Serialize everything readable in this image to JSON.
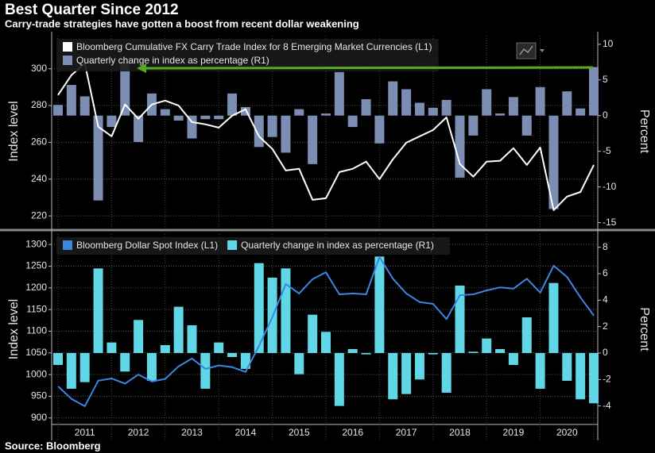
{
  "title": "Best Quarter Since 2012",
  "subtitle": "Carry-trade strategies have gotten a boost from recent dollar weakening",
  "source": "Source: Bloomberg",
  "chart_data": [
    {
      "type": "combo",
      "ylabel": "Index level",
      "y2label": "Percent",
      "categories": [
        null,
        null,
        null,
        null,
        null,
        null,
        null,
        null,
        null,
        null,
        null,
        null,
        null,
        null,
        null,
        null,
        null,
        null,
        null,
        null,
        null,
        null,
        null,
        null,
        null,
        null,
        null,
        null,
        null,
        null,
        null,
        null,
        null,
        null,
        null,
        null,
        null,
        null,
        null,
        null,
        null
      ],
      "ylim": [
        214,
        318
      ],
      "yticks": [
        220,
        240,
        260,
        280,
        300
      ],
      "y2lim": [
        -15.6,
        11.2
      ],
      "y2ticks": [
        -15,
        -10,
        -5,
        0,
        5,
        10
      ],
      "grid": true,
      "legend": "top-left",
      "series": [
        {
          "name": "Bloomberg Cumulative FX Carry Trade Index for 8 Emerging Market Currencies  (L1)",
          "type": "line",
          "color": "#ffffff",
          "values": [
            285.7,
            296.5,
            303,
            268.5,
            263.3,
            280.6,
            272.8,
            280.6,
            282.7,
            280,
            271,
            269.8,
            268,
            274.5,
            278,
            263.3,
            256.4,
            244.7,
            245.6,
            228.7,
            229.6,
            243.8,
            245.6,
            249.5,
            240,
            250.8,
            259.8,
            263.3,
            266.7,
            273.6,
            248.2,
            241.3,
            249.5,
            250,
            256.8,
            247.7,
            257.2,
            223.1,
            230.5,
            233,
            247.7
          ]
        },
        {
          "name": "Quarterly change in index as percentage (R1)",
          "type": "bar",
          "axis": "y2",
          "color": "#7b8db2",
          "values": [
            1.5,
            4.3,
            2.7,
            -11.9,
            -1.6,
            7.5,
            -3.7,
            3.1,
            0.9,
            -0.7,
            -3.2,
            -0.5,
            -0.5,
            3.1,
            1.2,
            -4.4,
            -3.0,
            -5.2,
            0.9,
            -6.8,
            0.3,
            6.1,
            -1.6,
            2.3,
            -3.9,
            4.8,
            3.7,
            1.8,
            1.1,
            2.2,
            -8.7,
            -2.8,
            3.7,
            0.3,
            2.6,
            -2.8,
            4.0,
            -13.1,
            3.4,
            1.0,
            6.8
          ]
        }
      ]
    },
    {
      "type": "combo",
      "ylabel": "Index level",
      "y2label": "Percent",
      "categories": [
        null,
        null,
        null,
        null,
        null,
        null,
        null,
        null,
        null,
        null,
        null,
        null,
        null,
        null,
        null,
        null,
        null,
        null,
        null,
        null,
        null,
        null,
        null,
        null,
        null,
        null,
        null,
        null,
        null,
        null,
        null,
        null,
        null,
        null,
        null,
        null,
        null,
        null,
        null,
        null,
        null
      ],
      "year_labels": [
        "2011",
        "2012",
        "2013",
        "2014",
        "2015",
        "2016",
        "2017",
        "2018",
        "2019",
        "2020"
      ],
      "ylim": [
        885,
        1324
      ],
      "yticks": [
        900,
        950,
        1000,
        1050,
        1100,
        1150,
        1200,
        1250,
        1300
      ],
      "y2lim": [
        -5.4,
        9
      ],
      "y2ticks": [
        -4,
        -2,
        0,
        2,
        4,
        6,
        8
      ],
      "grid": true,
      "legend": "top-left",
      "series": [
        {
          "name": "Bloomberg Dollar Spot Index (L1)",
          "type": "line",
          "color": "#3a86e0",
          "values": [
            973,
            944,
            927,
            986,
            991,
            979,
            1000,
            984,
            990,
            1019,
            1037,
            1013,
            1021,
            1017,
            1006,
            1066,
            1132,
            1209,
            1187,
            1220,
            1236,
            1185,
            1187,
            1185,
            1271,
            1221,
            1187,
            1167,
            1163,
            1128,
            1183,
            1185,
            1194,
            1201,
            1198,
            1221,
            1189,
            1251,
            1225,
            1178,
            1136
          ]
        },
        {
          "name": "Quarterly change in index as percentage (R1)",
          "type": "bar",
          "axis": "y2",
          "color": "#5fd7e6",
          "values": [
            -0.9,
            -2.7,
            -2.2,
            6.4,
            0.8,
            -1.4,
            2.5,
            -2.1,
            0.6,
            3.5,
            2.1,
            -2.7,
            0.8,
            -0.3,
            -1.2,
            6.8,
            5.7,
            6.4,
            -1.6,
            2.9,
            1.6,
            -4.0,
            0.3,
            -0.1,
            7.3,
            -3.5,
            -3.1,
            -2.0,
            -0.1,
            -3.0,
            5.1,
            0.1,
            1.1,
            0.3,
            -0.9,
            2.7,
            -2.7,
            5.3,
            -2.1,
            -3.5,
            -3.8
          ]
        }
      ]
    }
  ]
}
